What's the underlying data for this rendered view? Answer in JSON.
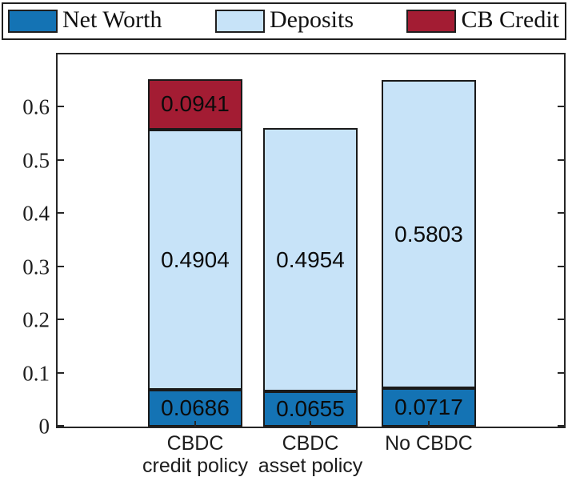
{
  "figure": {
    "background": "#ffffff",
    "frame_color": "#262626"
  },
  "chart_data": {
    "type": "bar",
    "stacked": true,
    "title": "",
    "xlabel": "",
    "ylabel": "",
    "categories": [
      [
        "CBDC",
        "credit policy"
      ],
      [
        "CBDC",
        "asset policy"
      ],
      [
        "No CBDC"
      ]
    ],
    "series": [
      {
        "name": "Net Worth",
        "color": "#1473b4",
        "values": [
          0.0686,
          0.0655,
          0.0717
        ]
      },
      {
        "name": "Deposits",
        "color": "#c7e3f8",
        "values": [
          0.4904,
          0.4954,
          0.5803
        ]
      },
      {
        "name": "CB Credit",
        "color": "#a31c33",
        "values": [
          0.0941,
          0,
          0
        ]
      }
    ],
    "bar_totals": [
      0.6531,
      0.5609,
      0.652
    ],
    "value_label_decimals": 4,
    "ylim": [
      0,
      0.7
    ],
    "yticks": [
      "0",
      "0.1",
      "0.2",
      "0.3",
      "0.4",
      "0.5",
      "0.6"
    ],
    "grid": false,
    "legend_position": "top"
  }
}
